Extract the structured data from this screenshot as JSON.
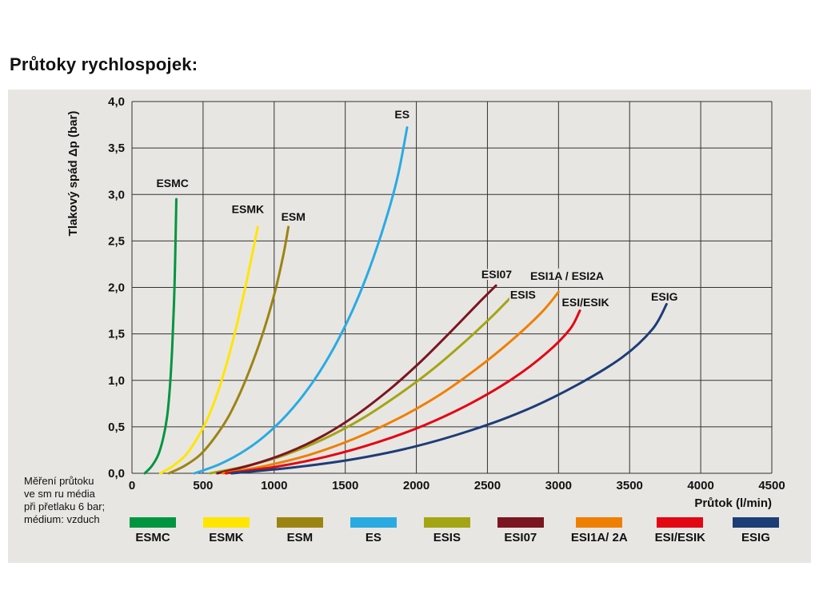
{
  "page": {
    "title": "Průtoky rychlospojek:",
    "note": "Měření průtoku\nve sm ru média\npři přetlaku 6 bar;\nmédium: vzduch"
  },
  "colors": {
    "panel_bg": "#e8e6e3",
    "grid": "#333333",
    "text": "#111111"
  },
  "chart_data": {
    "type": "line",
    "title": "Průtoky rychlospojek:",
    "xlabel": "Průtok (l/min)",
    "ylabel": "Tlakový spád Δp (bar)",
    "xlim": [
      0,
      4500
    ],
    "ylim": [
      0,
      4
    ],
    "grid": true,
    "legend_position": "bottom",
    "x_ticks": {
      "values": [
        0,
        500,
        1000,
        1500,
        2000,
        2500,
        3000,
        3500,
        4000,
        4500
      ],
      "labels": [
        "0",
        "500",
        "1000",
        "1500",
        "2000",
        "2500",
        "3000",
        "3500",
        "4000",
        "4500"
      ]
    },
    "y_ticks": {
      "values": [
        0,
        0.5,
        1,
        1.5,
        2,
        2.5,
        3,
        3.5,
        4
      ],
      "labels": [
        "0,0",
        "0,5",
        "1,0",
        "1,5",
        "2,0",
        "2,5",
        "3,0",
        "3,5",
        "4,0"
      ]
    },
    "series": [
      {
        "legend_label": "ESMC",
        "color": "#009640",
        "annotation": {
          "text": "ESMC",
          "x": 285,
          "y": 3.08
        },
        "points": [
          [
            90,
            0
          ],
          [
            140,
            0.08
          ],
          [
            185,
            0.2
          ],
          [
            220,
            0.38
          ],
          [
            248,
            0.62
          ],
          [
            268,
            0.95
          ],
          [
            283,
            1.35
          ],
          [
            295,
            1.8
          ],
          [
            304,
            2.3
          ],
          [
            312,
            2.95
          ]
        ]
      },
      {
        "legend_label": "ESMK",
        "color": "#ffe500",
        "annotation": {
          "text": "ESMK",
          "x": 815,
          "y": 2.8
        },
        "points": [
          [
            200,
            0
          ],
          [
            290,
            0.08
          ],
          [
            380,
            0.2
          ],
          [
            460,
            0.38
          ],
          [
            535,
            0.6
          ],
          [
            605,
            0.88
          ],
          [
            670,
            1.2
          ],
          [
            730,
            1.55
          ],
          [
            790,
            1.95
          ],
          [
            845,
            2.35
          ],
          [
            885,
            2.65
          ]
        ]
      },
      {
        "legend_label": "ESM",
        "color": "#9c8412",
        "annotation": {
          "text": "ESM",
          "x": 1135,
          "y": 2.72
        },
        "points": [
          [
            260,
            0
          ],
          [
            370,
            0.08
          ],
          [
            480,
            0.2
          ],
          [
            580,
            0.38
          ],
          [
            675,
            0.6
          ],
          [
            765,
            0.88
          ],
          [
            850,
            1.2
          ],
          [
            930,
            1.55
          ],
          [
            1005,
            1.95
          ],
          [
            1065,
            2.35
          ],
          [
            1100,
            2.65
          ]
        ]
      },
      {
        "legend_label": "ES",
        "color": "#29abe2",
        "annotation": {
          "text": "ES",
          "x": 1900,
          "y": 3.82
        },
        "points": [
          [
            440,
            0
          ],
          [
            620,
            0.1
          ],
          [
            800,
            0.25
          ],
          [
            970,
            0.45
          ],
          [
            1130,
            0.7
          ],
          [
            1280,
            1.0
          ],
          [
            1420,
            1.35
          ],
          [
            1550,
            1.75
          ],
          [
            1670,
            2.2
          ],
          [
            1780,
            2.7
          ],
          [
            1870,
            3.2
          ],
          [
            1935,
            3.72
          ]
        ]
      },
      {
        "legend_label": "ESIS",
        "color": "#a4a513",
        "annotation": {
          "text": "ESIS",
          "x": 2750,
          "y": 1.88
        },
        "points": [
          [
            550,
            0
          ],
          [
            810,
            0.08
          ],
          [
            1080,
            0.2
          ],
          [
            1350,
            0.37
          ],
          [
            1610,
            0.58
          ],
          [
            1860,
            0.83
          ],
          [
            2100,
            1.1
          ],
          [
            2330,
            1.4
          ],
          [
            2540,
            1.7
          ],
          [
            2700,
            1.95
          ]
        ]
      },
      {
        "legend_label": "ESI07",
        "color": "#7b1621",
        "annotation": {
          "text": "ESI07",
          "x": 2565,
          "y": 2.1
        },
        "points": [
          [
            600,
            0
          ],
          [
            840,
            0.09
          ],
          [
            1090,
            0.22
          ],
          [
            1340,
            0.4
          ],
          [
            1580,
            0.63
          ],
          [
            1810,
            0.9
          ],
          [
            2030,
            1.2
          ],
          [
            2240,
            1.52
          ],
          [
            2430,
            1.82
          ],
          [
            2560,
            2.02
          ]
        ]
      },
      {
        "legend_label": "ESI1A/ 2A",
        "color": "#ef7f00",
        "annotation": {
          "text": "ESI1A / ESI2A",
          "x": 3060,
          "y": 2.08
        },
        "points": [
          [
            640,
            0
          ],
          [
            940,
            0.08
          ],
          [
            1250,
            0.2
          ],
          [
            1560,
            0.37
          ],
          [
            1860,
            0.58
          ],
          [
            2150,
            0.83
          ],
          [
            2420,
            1.12
          ],
          [
            2670,
            1.43
          ],
          [
            2880,
            1.73
          ],
          [
            3000,
            1.95
          ]
        ]
      },
      {
        "legend_label": "ESI/ESIK",
        "color": "#e30613",
        "annotation": {
          "text": "ESI/ESIK",
          "x": 3190,
          "y": 1.8
        },
        "points": [
          [
            660,
            0
          ],
          [
            1010,
            0.07
          ],
          [
            1370,
            0.18
          ],
          [
            1720,
            0.33
          ],
          [
            2060,
            0.52
          ],
          [
            2380,
            0.75
          ],
          [
            2680,
            1.02
          ],
          [
            2920,
            1.3
          ],
          [
            3080,
            1.55
          ],
          [
            3150,
            1.75
          ]
        ]
      },
      {
        "legend_label": "ESIG",
        "color": "#1d3d76",
        "annotation": {
          "text": "ESIG",
          "x": 3745,
          "y": 1.86
        },
        "points": [
          [
            700,
            0
          ],
          [
            1120,
            0.06
          ],
          [
            1550,
            0.15
          ],
          [
            1970,
            0.28
          ],
          [
            2380,
            0.46
          ],
          [
            2770,
            0.68
          ],
          [
            3130,
            0.95
          ],
          [
            3450,
            1.25
          ],
          [
            3660,
            1.55
          ],
          [
            3760,
            1.82
          ]
        ]
      }
    ]
  }
}
